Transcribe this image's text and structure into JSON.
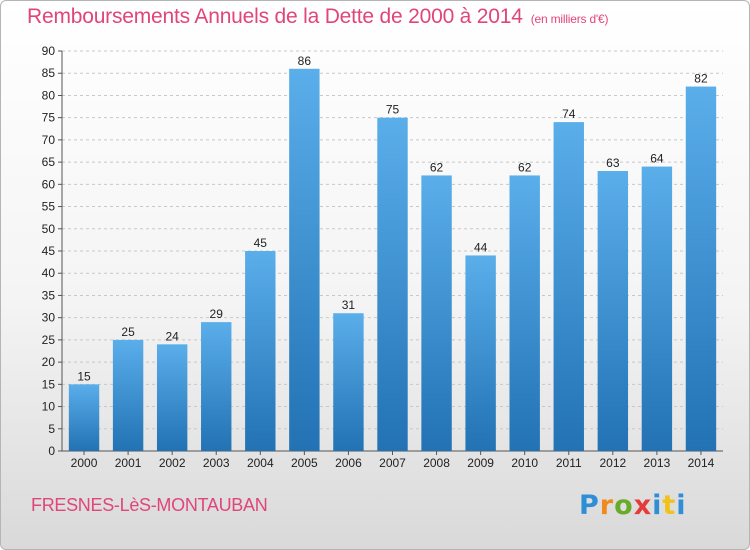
{
  "header": {
    "title": "Remboursements Annuels de la Dette de 2000 à 2014",
    "subtitle": "(en milliers d'€)"
  },
  "footer": {
    "commune": "FRESNES-LèS-MONTAUBAN",
    "brand": [
      "P",
      "r",
      "o",
      "x",
      "i",
      "t",
      "i"
    ]
  },
  "colors": {
    "bar_light": "#5aaeea",
    "bar_dark": "#2272b4",
    "grid": "#c8c8c8",
    "accent": "#e0457b"
  },
  "chart_data": {
    "type": "bar",
    "title": "Remboursements Annuels de la Dette de 2000 à 2014",
    "xlabel": "",
    "ylabel": "",
    "ylim": [
      0,
      90
    ],
    "yticks": [
      0,
      5,
      10,
      15,
      20,
      25,
      30,
      35,
      40,
      45,
      50,
      55,
      60,
      65,
      70,
      75,
      80,
      85,
      90
    ],
    "grid": "horizontal dashed",
    "categories": [
      "2000",
      "2001",
      "2002",
      "2003",
      "2004",
      "2005",
      "2006",
      "2007",
      "2008",
      "2009",
      "2010",
      "2011",
      "2012",
      "2013",
      "2014"
    ],
    "values": [
      15,
      25,
      24,
      29,
      45,
      86,
      31,
      75,
      62,
      44,
      62,
      74,
      63,
      64,
      82
    ]
  }
}
